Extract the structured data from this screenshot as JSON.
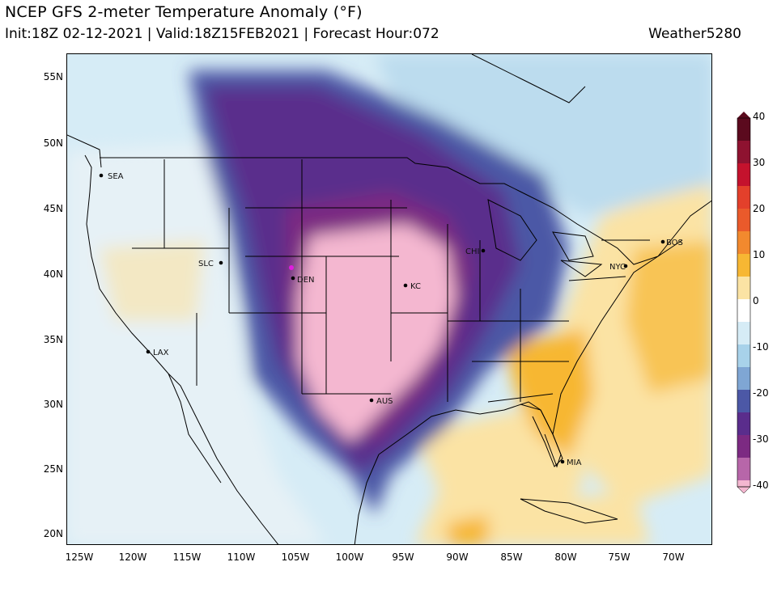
{
  "header": {
    "title": "NCEP GFS 2-meter Temperature Anomaly (°F)",
    "subtitle": "Init:18Z 02-12-2021 | Valid:18Z15FEB2021 | Forecast Hour:072",
    "brand": "Weather5280"
  },
  "axes": {
    "lat_ticks": [
      "55N",
      "50N",
      "45N",
      "40N",
      "35N",
      "30N",
      "25N",
      "20N"
    ],
    "lon_ticks": [
      "125W",
      "120W",
      "115W",
      "110W",
      "105W",
      "100W",
      "95W",
      "90W",
      "85W",
      "80W",
      "75W",
      "70W"
    ]
  },
  "colorbar": {
    "labels": [
      "40",
      "30",
      "20",
      "10",
      "0",
      "-10",
      "-20",
      "-30",
      "-40"
    ],
    "colors": {
      "c40": "#5b0a1e",
      "c30": "#c4122d",
      "c20": "#ea5a2b",
      "c10": "#f7b733",
      "c5": "#fbe3a4",
      "c0": "#ffffff",
      "cm5": "#d6ecf6",
      "cm10": "#a8d2ea",
      "cm15": "#7fa6d4",
      "cm20": "#4c58a6",
      "cm25": "#5a2d8c",
      "cm30": "#7c2a82",
      "cm35": "#b766a9",
      "cm40": "#f4b7d0"
    }
  },
  "cities": {
    "sea": "SEA",
    "slc": "SLC",
    "den": "DEN",
    "lax": "LAX",
    "kc": "KC",
    "aus": "AUS",
    "chi": "CHI",
    "nyc": "NYC",
    "bos": "BOS",
    "mia": "MIA"
  }
}
